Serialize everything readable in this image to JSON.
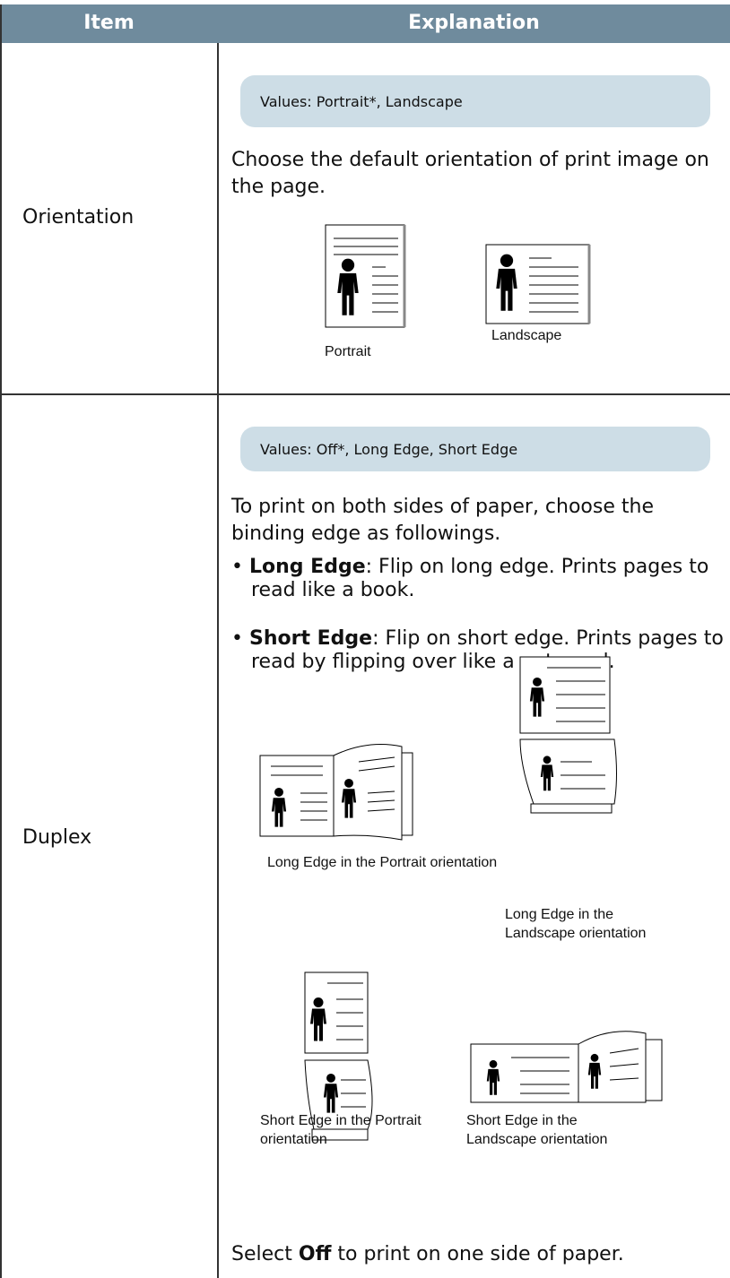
{
  "header": {
    "columns": [
      "Item",
      "Explanation"
    ]
  },
  "rows": [
    {
      "item": "Orientation",
      "values": "Values: Portrait*, Landscape",
      "description": "Choose the default orientation of print image on the page.",
      "figures": [
        {
          "caption": "Portrait"
        },
        {
          "caption": "Landscape"
        }
      ]
    },
    {
      "item": "Duplex",
      "values": "Values: Off*, Long Edge, Short Edge",
      "description": "To print on both sides of paper, choose the binding edge as followings.",
      "bullets": [
        {
          "term": "Long Edge",
          "text": ": Flip on long edge. Prints pages to read like a book."
        },
        {
          "term": "Short Edge",
          "text": ": Flip on short edge. Prints pages to read by flipping over like a note pad."
        }
      ],
      "figures": [
        {
          "caption": "Long Edge in the Portrait orientation"
        },
        {
          "caption": "Long Edge in the Landscape orientation"
        },
        {
          "caption": "Short Edge in the Portrait orientation"
        },
        {
          "caption": "Short Edge in the Landscape orientation"
        }
      ],
      "footer": {
        "before": "Select ",
        "bold": "Off",
        "after": " to print on one side of paper."
      }
    }
  ]
}
